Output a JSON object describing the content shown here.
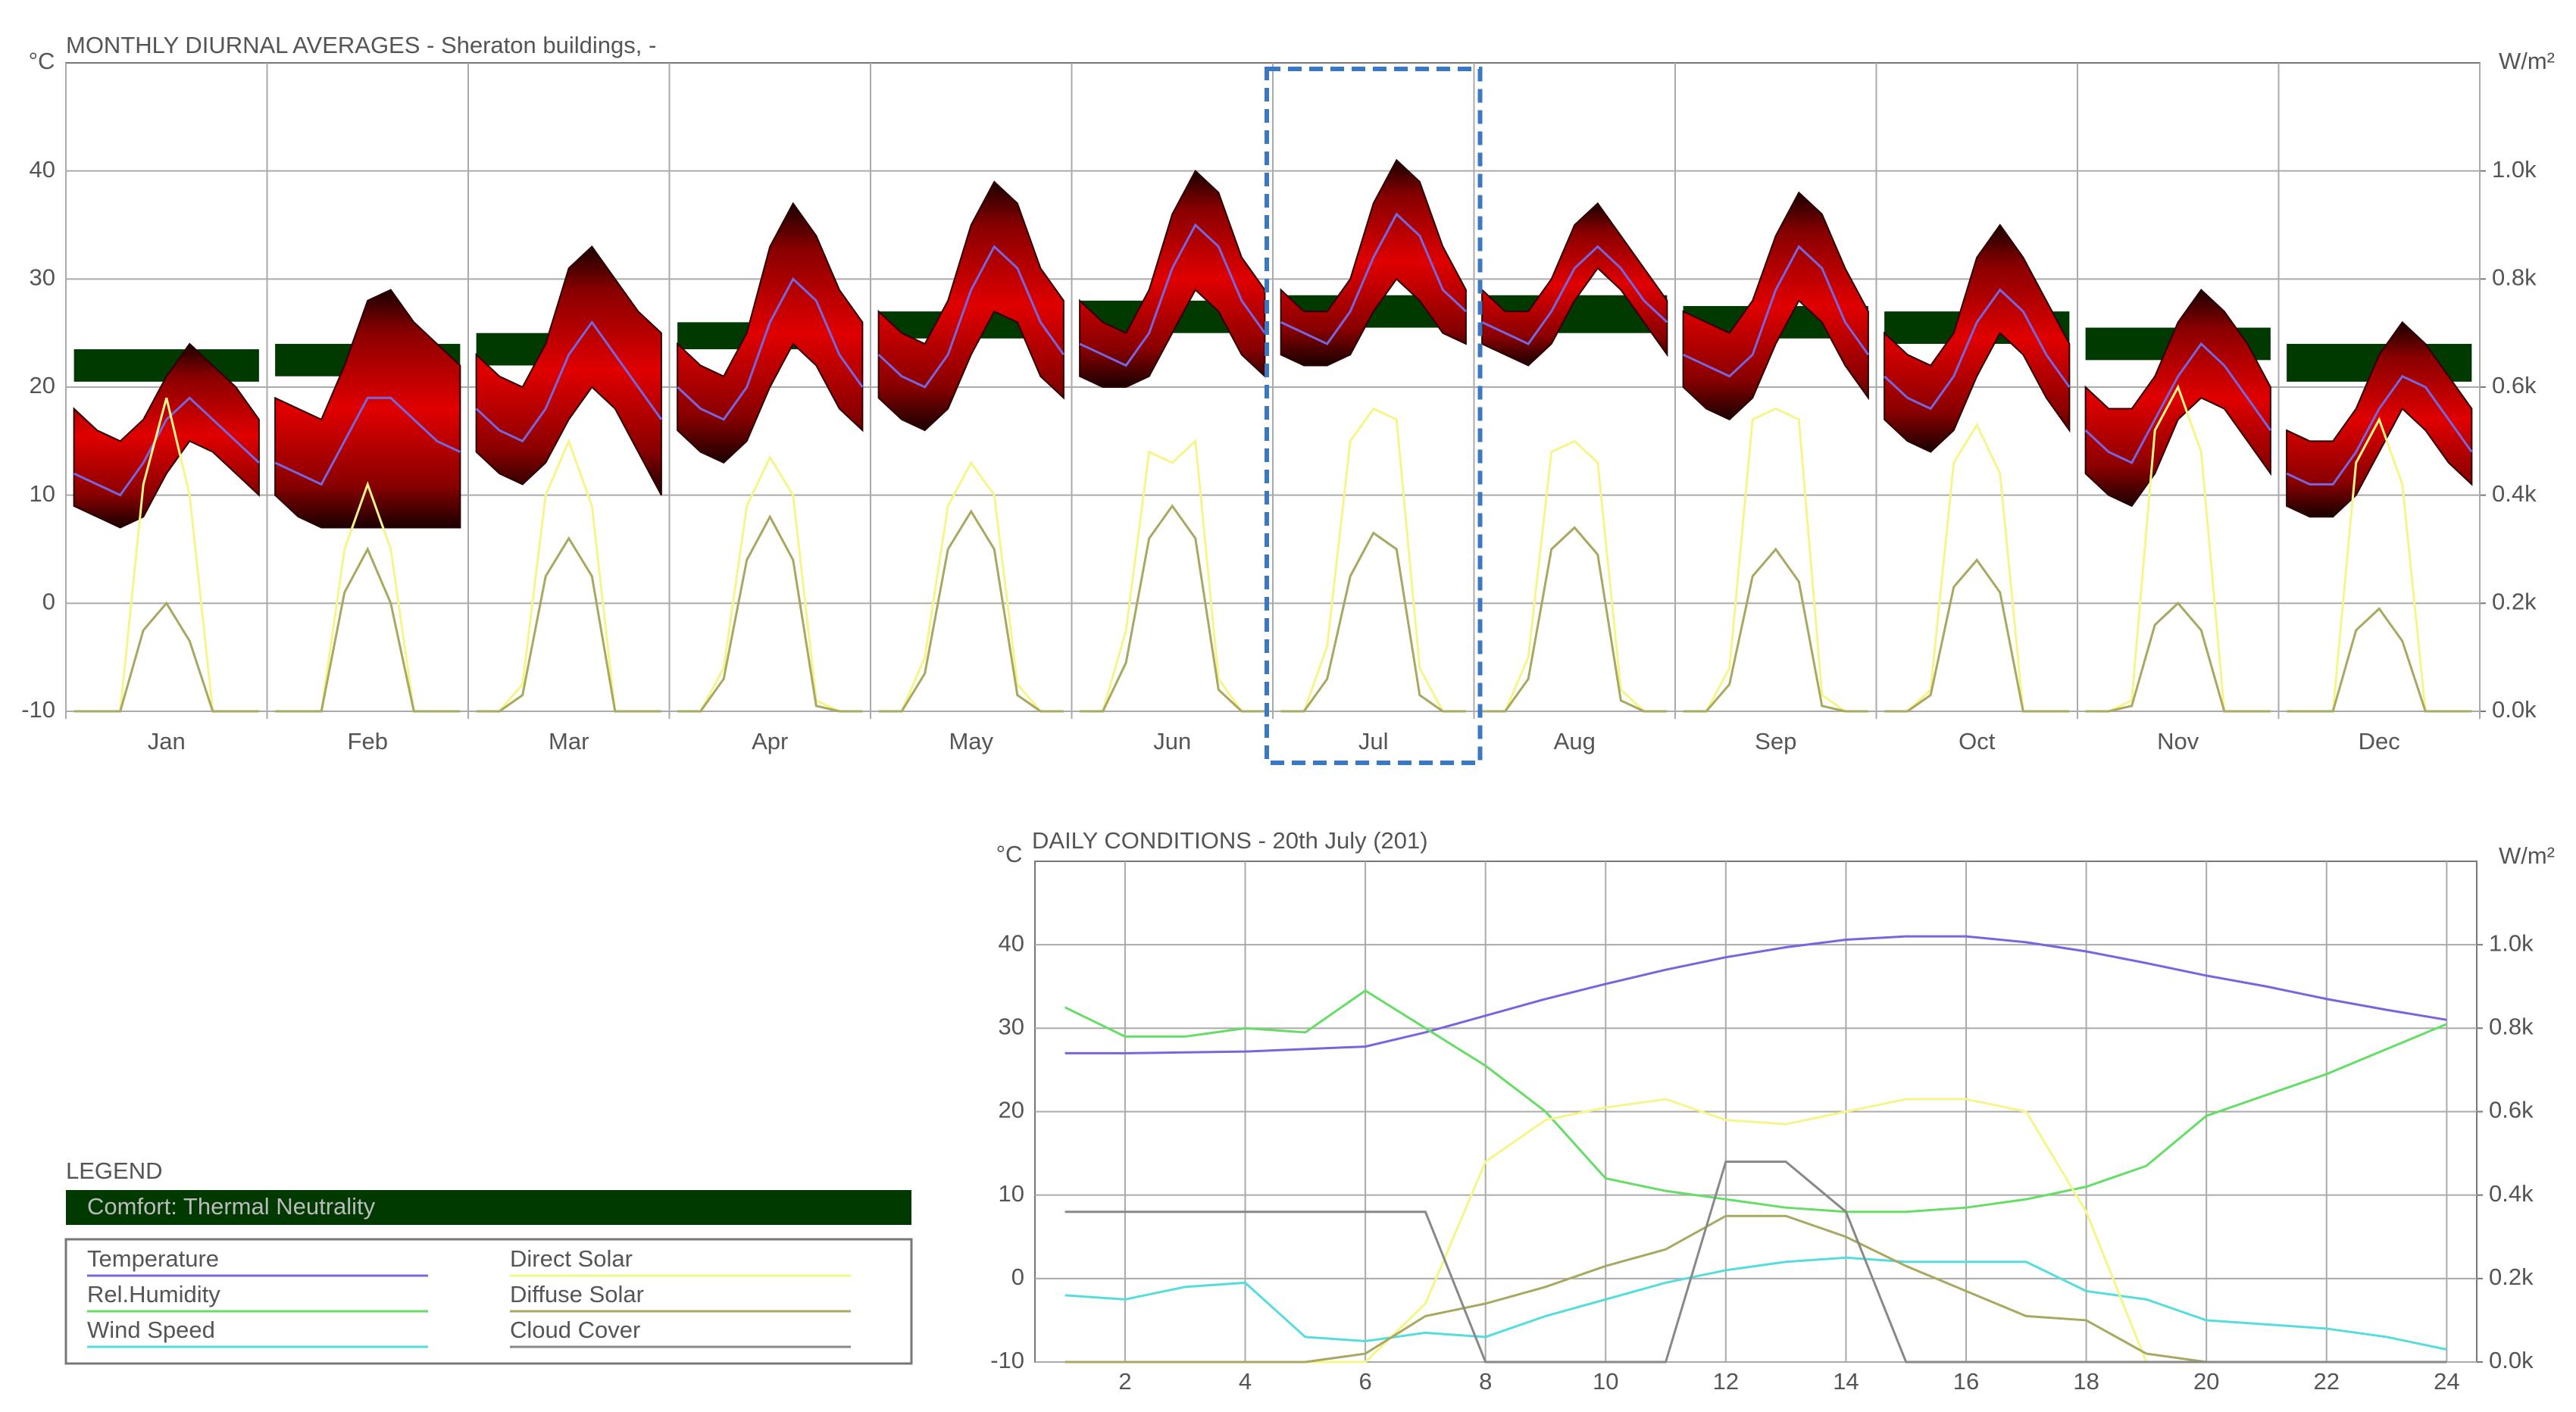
{
  "chart_data": [
    {
      "type": "monthly-diurnal",
      "title": "MONTHLY DIURNAL AVERAGES - Sheraton buildings, -",
      "y_label": "°C",
      "y2_label": "W/m²",
      "ylim": [
        -10,
        50
      ],
      "yticks": [
        -10,
        0,
        10,
        20,
        30,
        40
      ],
      "y2lim": [
        0,
        1200
      ],
      "y2ticks": [
        {
          "value": 0,
          "label": "0.0k"
        },
        {
          "value": 200,
          "label": "0.2k"
        },
        {
          "value": 400,
          "label": "0.4k"
        },
        {
          "value": 600,
          "label": "0.6k"
        },
        {
          "value": 800,
          "label": "0.8k"
        },
        {
          "value": 1000,
          "label": "1.0k"
        }
      ],
      "grid": true,
      "categories": [
        "Jan",
        "Feb",
        "Mar",
        "Apr",
        "May",
        "Jun",
        "Jul",
        "Aug",
        "Sep",
        "Oct",
        "Nov",
        "Dec"
      ],
      "x": [
        0,
        3,
        6,
        9,
        12,
        15,
        18,
        21,
        24
      ],
      "comfort_color": "#013a00",
      "range_color": "#d00000",
      "mean_color": "#7766dd",
      "direct_color": "#f5f58a",
      "diffuse_color": "#a8a860",
      "comfort": [
        [
          20.5,
          23.5
        ],
        [
          21,
          24
        ],
        [
          22,
          25
        ],
        [
          23.5,
          26
        ],
        [
          24.5,
          27
        ],
        [
          25,
          28
        ],
        [
          25.5,
          28.5
        ],
        [
          25,
          28.5
        ],
        [
          24.5,
          27.5
        ],
        [
          24,
          27
        ],
        [
          22.5,
          25.5
        ],
        [
          20.5,
          24
        ]
      ],
      "temp_max": [
        [
          18,
          16,
          15,
          17,
          21,
          24,
          22,
          20,
          17
        ],
        [
          19,
          18,
          17,
          22,
          28,
          29,
          26,
          24,
          22
        ],
        [
          23,
          21,
          20,
          24,
          31,
          33,
          30,
          27,
          25
        ],
        [
          24,
          22,
          21,
          25,
          33,
          37,
          34,
          29,
          26
        ],
        [
          27,
          25,
          24,
          28,
          35,
          39,
          37,
          31,
          28
        ],
        [
          28,
          26,
          25,
          29,
          36,
          40,
          38,
          32,
          29
        ],
        [
          29,
          27,
          27,
          30,
          37,
          41,
          39,
          33,
          29
        ],
        [
          29,
          27,
          27,
          30,
          35,
          37,
          34,
          31,
          28
        ],
        [
          27,
          26,
          25,
          28,
          34,
          38,
          36,
          31,
          27
        ],
        [
          25,
          23,
          22,
          25,
          32,
          35,
          32,
          28,
          24
        ],
        [
          20,
          18,
          18,
          21,
          26,
          29,
          27,
          24,
          20
        ],
        [
          16,
          15,
          15,
          18,
          23,
          26,
          24,
          21,
          18
        ]
      ],
      "temp_min": [
        [
          9,
          8,
          7,
          8,
          12,
          15,
          14,
          12,
          10
        ],
        [
          10,
          8,
          7,
          7,
          7,
          7,
          7,
          7,
          7
        ],
        [
          14,
          12,
          11,
          13,
          17,
          20,
          18,
          14,
          10
        ],
        [
          16,
          14,
          13,
          15,
          20,
          24,
          22,
          18,
          16
        ],
        [
          19,
          17,
          16,
          18,
          23,
          27,
          26,
          21,
          19
        ],
        [
          21,
          20,
          20,
          21,
          25,
          29,
          27,
          23,
          21
        ],
        [
          23,
          22,
          22,
          23,
          27,
          30,
          28,
          25,
          24
        ],
        [
          24,
          23,
          22,
          24,
          28,
          31,
          29,
          26,
          23
        ],
        [
          20,
          18,
          17,
          19,
          24,
          28,
          26,
          22,
          19
        ],
        [
          17,
          15,
          14,
          16,
          21,
          25,
          23,
          19,
          16
        ],
        [
          12,
          10,
          9,
          12,
          17,
          19,
          18,
          15,
          12
        ],
        [
          9,
          8,
          8,
          10,
          14,
          18,
          16,
          13,
          11
        ]
      ],
      "temp_mean": [
        [
          12,
          11,
          10,
          13,
          17,
          19,
          17,
          15,
          13
        ],
        [
          13,
          12,
          11,
          15,
          19,
          19,
          17,
          15,
          14
        ],
        [
          18,
          16,
          15,
          18,
          23,
          26,
          23,
          20,
          17
        ],
        [
          20,
          18,
          17,
          20,
          26,
          30,
          28,
          23,
          20
        ],
        [
          23,
          21,
          20,
          23,
          29,
          33,
          31,
          26,
          23
        ],
        [
          24,
          23,
          22,
          25,
          31,
          35,
          33,
          28,
          25
        ],
        [
          26,
          25,
          24,
          27,
          32,
          36,
          34,
          29,
          27
        ],
        [
          26,
          25,
          24,
          27,
          31,
          33,
          31,
          28,
          26
        ],
        [
          23,
          22,
          21,
          23,
          29,
          33,
          31,
          26,
          23
        ],
        [
          21,
          19,
          18,
          21,
          26,
          29,
          27,
          23,
          20
        ],
        [
          16,
          14,
          13,
          17,
          21,
          24,
          22,
          19,
          16
        ],
        [
          12,
          11,
          11,
          14,
          18,
          21,
          20,
          17,
          14
        ]
      ],
      "direct_solar": [
        [
          0,
          0,
          0,
          420,
          580,
          400,
          0,
          0,
          0
        ],
        [
          0,
          0,
          0,
          300,
          420,
          300,
          0,
          0,
          0
        ],
        [
          0,
          0,
          50,
          400,
          500,
          380,
          0,
          0,
          0
        ],
        [
          0,
          0,
          80,
          380,
          470,
          400,
          20,
          0,
          0
        ],
        [
          0,
          0,
          100,
          380,
          460,
          400,
          50,
          0,
          0
        ],
        [
          0,
          0,
          150,
          480,
          460,
          500,
          60,
          0,
          0
        ],
        [
          0,
          0,
          120,
          500,
          560,
          540,
          80,
          0,
          0
        ],
        [
          0,
          0,
          100,
          480,
          500,
          460,
          40,
          0,
          0
        ],
        [
          0,
          0,
          80,
          540,
          560,
          540,
          30,
          0,
          0
        ],
        [
          0,
          0,
          40,
          460,
          530,
          440,
          0,
          0,
          0
        ],
        [
          0,
          0,
          20,
          520,
          600,
          480,
          0,
          0,
          0
        ],
        [
          0,
          0,
          0,
          460,
          540,
          420,
          0,
          0,
          0
        ]
      ],
      "diffuse_solar": [
        [
          0,
          0,
          0,
          150,
          200,
          130,
          0,
          0,
          0
        ],
        [
          0,
          0,
          0,
          220,
          300,
          200,
          0,
          0,
          0
        ],
        [
          0,
          0,
          30,
          250,
          320,
          250,
          0,
          0,
          0
        ],
        [
          0,
          0,
          60,
          280,
          360,
          280,
          10,
          0,
          0
        ],
        [
          0,
          0,
          70,
          300,
          370,
          300,
          30,
          0,
          0
        ],
        [
          0,
          0,
          90,
          320,
          380,
          320,
          40,
          0,
          0
        ],
        [
          0,
          0,
          60,
          250,
          330,
          300,
          30,
          0,
          0
        ],
        [
          0,
          0,
          60,
          300,
          340,
          290,
          20,
          0,
          0
        ],
        [
          0,
          0,
          50,
          250,
          300,
          240,
          10,
          0,
          0
        ],
        [
          0,
          0,
          30,
          230,
          280,
          220,
          0,
          0,
          0
        ],
        [
          0,
          0,
          10,
          160,
          200,
          150,
          0,
          0,
          0
        ],
        [
          0,
          0,
          0,
          150,
          190,
          130,
          0,
          0,
          0
        ]
      ]
    },
    {
      "type": "line",
      "title": "DAILY CONDITIONS - 20th July (201)",
      "y_label": "°C",
      "y2_label": "W/m²",
      "x": [
        1,
        2,
        3,
        4,
        5,
        6,
        7,
        8,
        9,
        10,
        11,
        12,
        13,
        14,
        15,
        16,
        17,
        18,
        19,
        20,
        21,
        22,
        23,
        24
      ],
      "xlim": [
        0.5,
        24.5
      ],
      "xticks": [
        2,
        4,
        6,
        8,
        10,
        12,
        14,
        16,
        18,
        20,
        22,
        24
      ],
      "ylim": [
        -10,
        50
      ],
      "yticks": [
        -10,
        0,
        10,
        20,
        30,
        40
      ],
      "y2lim": [
        0,
        1200
      ],
      "y2ticks": [
        {
          "value": 0,
          "label": "0.0k"
        },
        {
          "value": 200,
          "label": "0.2k"
        },
        {
          "value": 400,
          "label": "0.4k"
        },
        {
          "value": 600,
          "label": "0.6k"
        },
        {
          "value": 800,
          "label": "0.8k"
        },
        {
          "value": 1000,
          "label": "1.0k"
        }
      ],
      "grid": true,
      "series": [
        {
          "name": "Temperature",
          "color": "#7766dd",
          "values": [
            27,
            27,
            27.1,
            27.2,
            27.5,
            27.8,
            29.5,
            31.5,
            33.5,
            35.3,
            37,
            38.5,
            39.7,
            40.6,
            41,
            41,
            40.3,
            39.2,
            37.8,
            36.3,
            35,
            33.5,
            32.2,
            31
          ]
        },
        {
          "name": "Rel.Humidity",
          "color": "#66dd66",
          "values": [
            32.5,
            29,
            29,
            30,
            29.5,
            34.5,
            30,
            25.5,
            20,
            12,
            10.5,
            9.5,
            8.5,
            8,
            8,
            8.5,
            9.5,
            11,
            13.5,
            19.5,
            22,
            24.5,
            27.5,
            30.5
          ]
        },
        {
          "name": "Wind Speed",
          "color": "#55dddd",
          "values": [
            -2,
            -2.5,
            -1,
            -0.5,
            -7,
            -7.5,
            -6.5,
            -7,
            -4.5,
            -2.5,
            -0.5,
            1,
            2,
            2.5,
            2,
            2,
            2,
            -1.5,
            -2.5,
            -5,
            -5.5,
            -6,
            -7,
            -8.5
          ]
        },
        {
          "name": "Direct Solar",
          "color": "#f5f58a",
          "axis": "y2",
          "values": [
            0,
            0,
            0,
            0,
            0,
            0,
            140,
            480,
            580,
            610,
            630,
            580,
            570,
            600,
            630,
            630,
            600,
            360,
            0,
            0,
            0,
            0,
            0,
            0
          ]
        },
        {
          "name": "Diffuse Solar",
          "color": "#a8a860",
          "axis": "y2",
          "values": [
            0,
            0,
            0,
            0,
            0,
            20,
            110,
            140,
            180,
            230,
            270,
            350,
            350,
            300,
            230,
            170,
            110,
            100,
            20,
            0,
            0,
            0,
            0,
            0
          ]
        },
        {
          "name": "Cloud Cover",
          "color": "#888888",
          "values": [
            8,
            8,
            8,
            8,
            8,
            8,
            8,
            -10,
            -10,
            -10,
            -10,
            14,
            14,
            8,
            -10,
            -10,
            -10,
            -10,
            -10,
            -10,
            -10,
            -10,
            -10,
            -10
          ]
        }
      ]
    }
  ],
  "legend": {
    "title": "LEGEND",
    "comfort": "Comfort: Thermal Neutrality"
  }
}
